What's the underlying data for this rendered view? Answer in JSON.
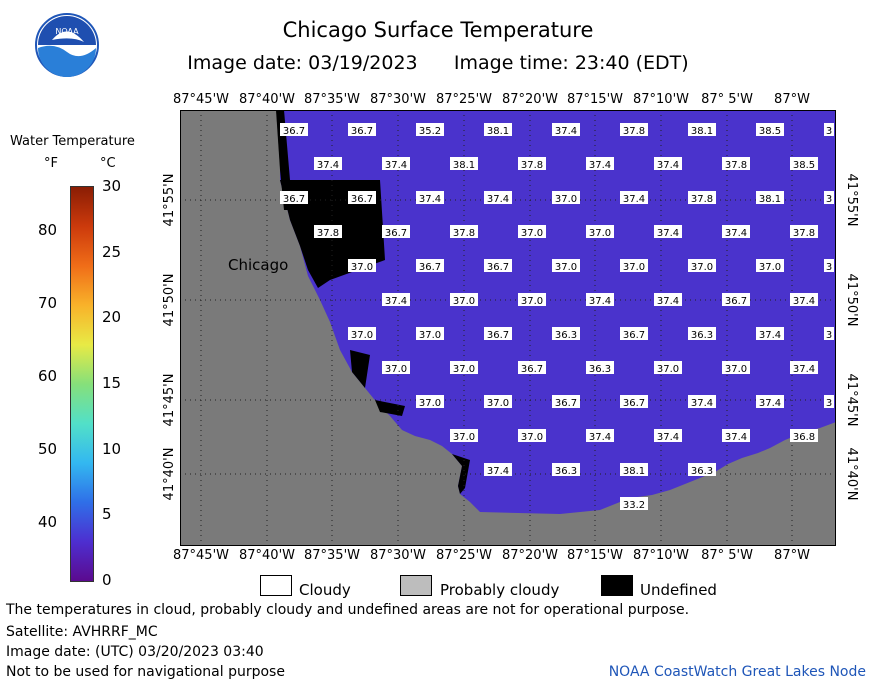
{
  "title": "Chicago Surface Temperature",
  "subtitle": {
    "date_label": "Image date:",
    "date": "03/19/2023",
    "time_label": "Image time:",
    "time": "23:40 (EDT)"
  },
  "logo_text": "NOAA",
  "colorbar": {
    "title": "Water Temperature",
    "unit_f": "°F",
    "unit_c": "°C",
    "f_ticks": [
      "40",
      "50",
      "60",
      "70",
      "80"
    ],
    "c_ticks": [
      "0",
      "5",
      "10",
      "15",
      "20",
      "25",
      "30"
    ],
    "stops": [
      "#5b0a8f",
      "#4d2fd0",
      "#2f6fe8",
      "#33b8f0",
      "#52e0c8",
      "#86e07a",
      "#e8ea45",
      "#f8b22a",
      "#f06d18",
      "#cc3a0c",
      "#8a1d04"
    ]
  },
  "map": {
    "city_label": "Chicago",
    "lon_labels": [
      "87°45'W",
      "87°40'W",
      "87°35'W",
      "87°30'W",
      "87°25'W",
      "87°20'W",
      "87°15'W",
      "87°10'W",
      "87° 5'W",
      "87°W"
    ],
    "lat_labels": [
      "41°55'N",
      "41°50'N",
      "41°45'N",
      "41°40'N"
    ],
    "water_color": "#4a33cc",
    "land_color": "#7a7a7a",
    "temps": [
      [
        "36.7",
        "36.7",
        "35.2",
        "38.1",
        "37.4",
        "37.8",
        "38.1",
        "38.5",
        "3"
      ],
      [
        "37.4",
        "37.4",
        "38.1",
        "37.8",
        "37.4",
        "37.4",
        "37.8",
        "38.5"
      ],
      [
        "36.7",
        "36.7",
        "37.4",
        "37.4",
        "37.0",
        "37.4",
        "37.8",
        "38.1",
        "3"
      ],
      [
        "37.8",
        "36.7",
        "37.8",
        "37.0",
        "37.0",
        "37.4",
        "37.4",
        "37.8"
      ],
      [
        "37.0",
        "36.7",
        "36.7",
        "37.0",
        "37.0",
        "37.0",
        "37.0",
        "3"
      ],
      [
        "37.4",
        "37.0",
        "37.0",
        "37.4",
        "37.4",
        "36.7",
        "37.4"
      ],
      [
        "37.0",
        "37.0",
        "36.7",
        "36.3",
        "36.7",
        "36.3",
        "37.4",
        "3"
      ],
      [
        "37.0",
        "37.0",
        "36.7",
        "36.3",
        "37.0",
        "37.0",
        "37.4"
      ],
      [
        "37.0",
        "37.0",
        "36.7",
        "36.7",
        "37.4",
        "37.4",
        "3"
      ],
      [
        "37.0",
        "37.0",
        "37.4",
        "37.4",
        "37.4",
        "36.8"
      ],
      [
        "37.4",
        "36.3",
        "38.1",
        "36.3"
      ],
      [
        "33.2"
      ]
    ]
  },
  "legend": {
    "cloudy": "Cloudy",
    "probably_cloudy": "Probably cloudy",
    "undefined": "Undefined"
  },
  "footer": {
    "disclaimer": "The temperatures in cloud, probably cloudy and undefined areas are not for operational purpose.",
    "satellite": "Satellite: AVHRRF_MC",
    "utc_date": "Image date: (UTC) 03/20/2023  03:40",
    "nav_warning": "Not to be used for navigational purpose",
    "credit": "NOAA CoastWatch Great Lakes Node"
  }
}
